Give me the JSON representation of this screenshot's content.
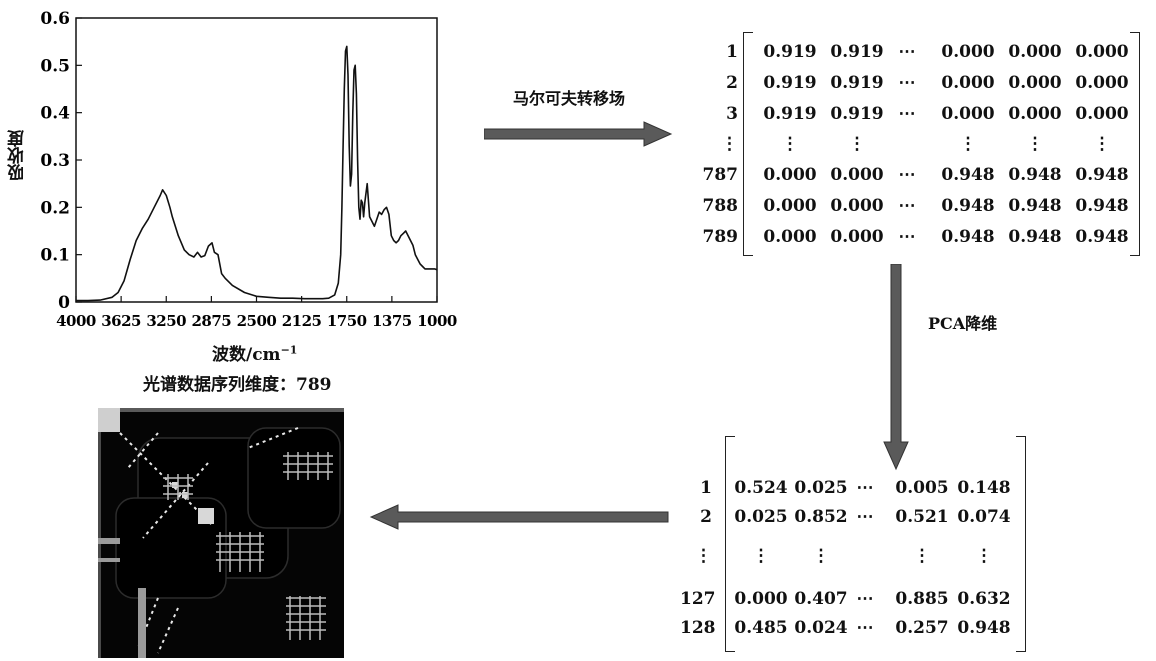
{
  "spectrum": {
    "ylabel": "吸收度",
    "xlabel_base": "波数/cm",
    "xlabel_sup": "−1",
    "caption": "光谱数据序列维度：789"
  },
  "chart_data": {
    "type": "line",
    "ylabel": "吸收度",
    "xlabel": "波数/cm−1",
    "xlim": [
      4000,
      1000
    ],
    "ylim": [
      0,
      0.6
    ],
    "xticks": [
      "4000",
      "3625",
      "3250",
      "2875",
      "2500",
      "2125",
      "1750",
      "1375",
      "1000"
    ],
    "yticks": [
      "0",
      "0.1",
      "0.2",
      "0.3",
      "0.4",
      "0.5",
      "0.6"
    ],
    "series": [
      {
        "x": [
          4000,
          3900,
          3800,
          3700,
          3650,
          3600,
          3550,
          3500,
          3450,
          3400,
          3350,
          3300,
          3280,
          3250,
          3220,
          3200,
          3150,
          3100,
          3060,
          3020,
          2990,
          2960,
          2930,
          2900,
          2870,
          2850,
          2820,
          2790,
          2760,
          2700,
          2600,
          2500,
          2400,
          2300,
          2200,
          2100,
          2000,
          1950,
          1900,
          1850,
          1820,
          1800,
          1790,
          1780,
          1770,
          1760,
          1750,
          1740,
          1730,
          1720,
          1710,
          1700,
          1690,
          1680,
          1670,
          1660,
          1650,
          1640,
          1630,
          1620,
          1610,
          1600,
          1580,
          1560,
          1540,
          1520,
          1500,
          1480,
          1460,
          1440,
          1420,
          1400,
          1380,
          1360,
          1340,
          1320,
          1300,
          1280,
          1260,
          1240,
          1220,
          1200,
          1180,
          1160,
          1140,
          1120,
          1100,
          1080,
          1060,
          1040,
          1020,
          1000
        ],
        "y": [
          0.003,
          0.003,
          0.004,
          0.01,
          0.02,
          0.045,
          0.09,
          0.13,
          0.155,
          0.175,
          0.2,
          0.225,
          0.237,
          0.225,
          0.2,
          0.18,
          0.14,
          0.11,
          0.1,
          0.095,
          0.105,
          0.095,
          0.098,
          0.118,
          0.125,
          0.105,
          0.1,
          0.06,
          0.05,
          0.035,
          0.02,
          0.012,
          0.01,
          0.008,
          0.008,
          0.007,
          0.007,
          0.007,
          0.008,
          0.015,
          0.04,
          0.1,
          0.2,
          0.33,
          0.45,
          0.53,
          0.54,
          0.48,
          0.33,
          0.245,
          0.27,
          0.4,
          0.49,
          0.5,
          0.44,
          0.3,
          0.2,
          0.175,
          0.215,
          0.21,
          0.18,
          0.21,
          0.25,
          0.18,
          0.17,
          0.16,
          0.175,
          0.19,
          0.185,
          0.195,
          0.2,
          0.185,
          0.14,
          0.13,
          0.125,
          0.13,
          0.14,
          0.145,
          0.15,
          0.14,
          0.13,
          0.12,
          0.1,
          0.09,
          0.08,
          0.075,
          0.07,
          0.07,
          0.07,
          0.07,
          0.07,
          0.068
        ]
      }
    ]
  },
  "arrow1_label": "马尔可夫转移场",
  "arrow2_label": "PCA降维",
  "matrix1": {
    "rows": [
      {
        "idx": "1",
        "vals": [
          "0.919",
          "0.919",
          "⋯",
          "0.000",
          "0.000",
          "0.000"
        ]
      },
      {
        "idx": "2",
        "vals": [
          "0.919",
          "0.919",
          "⋯",
          "0.000",
          "0.000",
          "0.000"
        ]
      },
      {
        "idx": "3",
        "vals": [
          "0.919",
          "0.919",
          "⋯",
          "0.000",
          "0.000",
          "0.000"
        ]
      },
      {
        "idx": "⋮",
        "vals": [
          "⋮",
          "⋮",
          "",
          "⋮",
          "⋮",
          "⋮"
        ]
      },
      {
        "idx": "787",
        "vals": [
          "0.000",
          "0.000",
          "⋯",
          "0.948",
          "0.948",
          "0.948"
        ]
      },
      {
        "idx": "788",
        "vals": [
          "0.000",
          "0.000",
          "⋯",
          "0.948",
          "0.948",
          "0.948"
        ]
      },
      {
        "idx": "789",
        "vals": [
          "0.000",
          "0.000",
          "⋯",
          "0.948",
          "0.948",
          "0.948"
        ]
      }
    ]
  },
  "matrix2": {
    "rows": [
      {
        "idx": "1",
        "vals": [
          "0.524",
          "0.025",
          "⋯",
          "0.005",
          "0.148"
        ]
      },
      {
        "idx": "2",
        "vals": [
          "0.025",
          "0.852",
          "⋯",
          "0.521",
          "0.074"
        ]
      },
      {
        "idx": "⋮",
        "vals": [
          "⋮",
          "⋮",
          "",
          "⋮",
          "⋮"
        ]
      },
      {
        "idx": "127",
        "vals": [
          "0.000",
          "0.407",
          "⋯",
          "0.885",
          "0.632"
        ]
      },
      {
        "idx": "128",
        "vals": [
          "0.485",
          "0.024",
          "⋯",
          "0.257",
          "0.948"
        ]
      }
    ]
  },
  "colors": {
    "arrow": "#5a5a5a",
    "line": "#111111",
    "image_bg": "#050505"
  }
}
